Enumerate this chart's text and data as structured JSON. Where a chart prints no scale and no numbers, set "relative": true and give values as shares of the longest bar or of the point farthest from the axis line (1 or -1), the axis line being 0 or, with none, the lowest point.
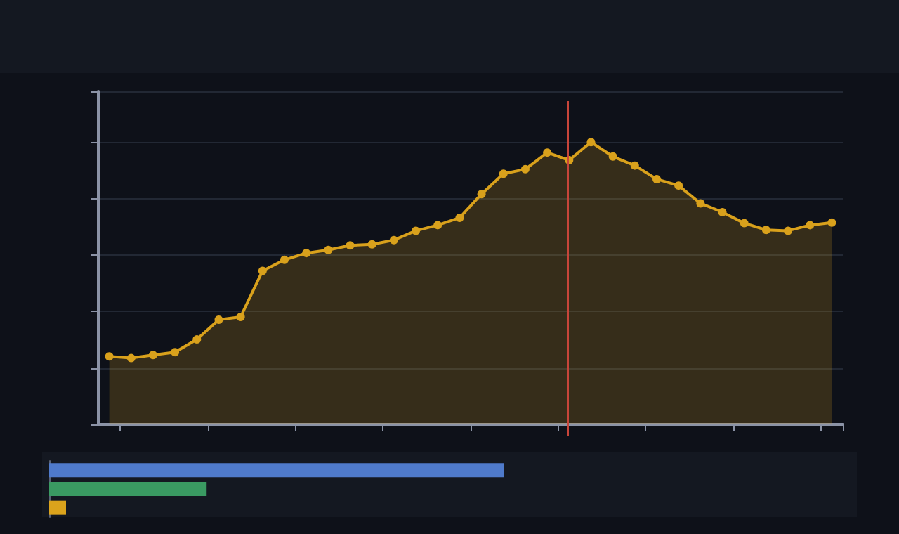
{
  "chart_data": [
    {
      "type": "area",
      "relative": true,
      "categories": [
        null,
        null,
        null,
        null,
        null,
        null,
        null,
        null,
        null,
        null,
        null,
        null,
        null,
        null,
        null,
        null,
        null,
        null,
        null,
        null,
        null,
        null,
        null,
        null,
        null,
        null,
        null,
        null,
        null,
        null,
        null,
        null,
        null,
        null
      ],
      "series": [
        {
          "color": "#d9a11c",
          "values": [
            0.241,
            0.235,
            0.246,
            0.256,
            0.301,
            0.371,
            0.381,
            0.544,
            0.583,
            0.607,
            0.618,
            0.634,
            0.638,
            0.653,
            0.686,
            0.706,
            0.732,
            0.816,
            0.888,
            0.904,
            0.963,
            0.936,
            1,
            0.949,
            0.917,
            0.869,
            0.846,
            0.783,
            0.752,
            0.713,
            0.689,
            0.686,
            0.706,
            0.715
          ]
        }
      ],
      "grid": "y",
      "marker": "circle",
      "line_style": "solid"
    },
    {
      "type": "bar",
      "orientation": "horizontal",
      "relative": true,
      "categories": [
        null,
        null,
        null
      ],
      "values": [
        1,
        0.346,
        0.037
      ],
      "colors": [
        "#4f7acb",
        "#3a9a62",
        "#dba31c"
      ]
    }
  ]
}
